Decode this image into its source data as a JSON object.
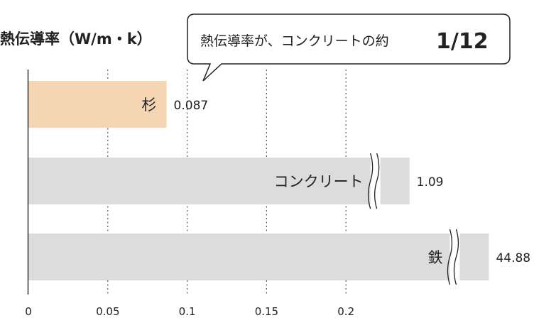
{
  "chart_data": {
    "type": "bar",
    "orientation": "horizontal",
    "title": "熱伝導率（W/m・k）",
    "callout": {
      "text": "熱伝導率が、コンクリートの約",
      "highlight": "1/12"
    },
    "categories": [
      "杉",
      "コンクリート",
      "鉄"
    ],
    "values": [
      0.087,
      1.09,
      44.88
    ],
    "value_labels": [
      "0.087",
      "1.09",
      "44.88"
    ],
    "broken_axis": [
      false,
      true,
      true
    ],
    "display_values": [
      0.087,
      0.24,
      0.29
    ],
    "xlim": [
      0,
      0.3
    ],
    "x_ticks": [
      0,
      0.05,
      0.1,
      0.15,
      0.2
    ],
    "x_tick_labels": [
      "0",
      "0.05",
      "0.1",
      "0.15",
      "0.2"
    ],
    "grid": "vertical-dotted",
    "colors": {
      "highlight_bar": "#f4d5b4",
      "default_bar": "#dcdcdc",
      "axis": "#333333",
      "grid": "#555555"
    }
  }
}
